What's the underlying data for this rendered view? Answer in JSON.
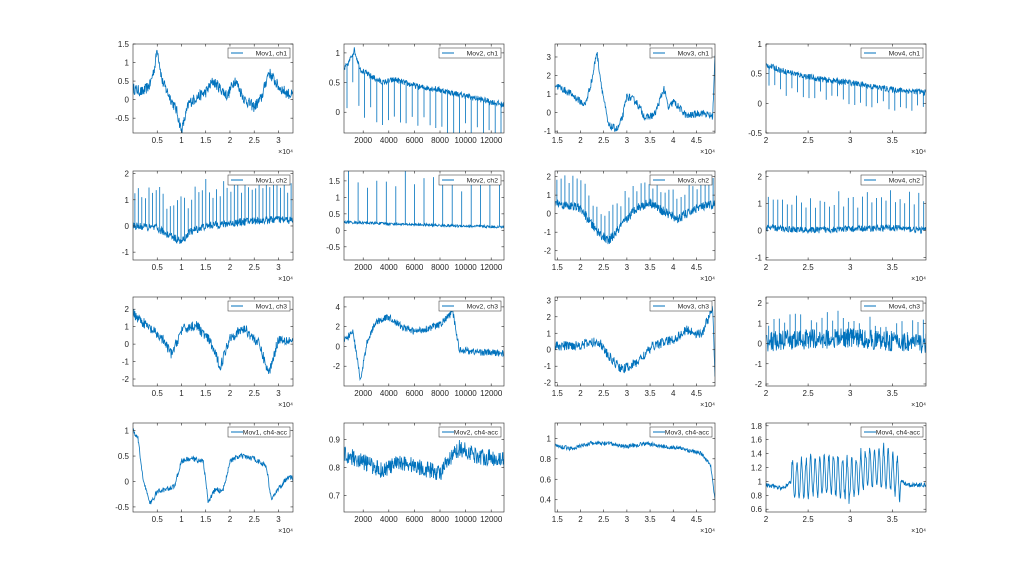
{
  "figure": {
    "rows": 4,
    "cols": 4,
    "line_color": "#0072BD",
    "axis_color": "#262626",
    "background": "#ffffff"
  },
  "chart_data": [
    {
      "type": "line",
      "legend": "Mov1, ch1",
      "legend_location": "top-right",
      "xlim": [
        0,
        3.3
      ],
      "ylim": [
        -0.9,
        1.5
      ],
      "xticks": [
        0.5,
        1,
        1.5,
        2,
        2.5,
        3
      ],
      "xtick_labels": [
        "0.5",
        "1",
        "1.5",
        "2",
        "2.5",
        "3"
      ],
      "yticks": [
        -0.5,
        0,
        0.5,
        1,
        1.5
      ],
      "ytick_labels": [
        "-0.5",
        "0",
        "0.5",
        "1",
        "1.5"
      ],
      "x_exponent": "×10⁴",
      "series": [
        {
          "x": [
            0,
            0.2,
            0.35,
            0.45,
            0.5,
            0.6,
            0.75,
            0.9,
            1.0,
            1.15,
            1.3,
            1.5,
            1.65,
            1.8,
            1.95,
            2.1,
            2.3,
            2.5,
            2.65,
            2.8,
            3.0,
            3.15,
            3.3
          ],
          "y": [
            0.3,
            0.2,
            0.4,
            0.9,
            1.4,
            0.5,
            0.1,
            -0.3,
            -0.85,
            -0.1,
            0.05,
            0.2,
            0.5,
            0.3,
            0.1,
            0.55,
            0.0,
            -0.2,
            0.05,
            0.75,
            0.35,
            0.2,
            0.1
          ],
          "noise": 0.15
        }
      ]
    },
    {
      "type": "line",
      "legend": "Mov2, ch1",
      "legend_location": "top-right",
      "xlim": [
        500,
        13000
      ],
      "ylim": [
        -0.35,
        1.15
      ],
      "xticks": [
        2000,
        4000,
        6000,
        8000,
        10000,
        12000
      ],
      "xtick_labels": [
        "2000",
        "4000",
        "6000",
        "8000",
        "10000",
        "12000"
      ],
      "yticks": [
        0,
        0.5,
        1
      ],
      "ytick_labels": [
        "0",
        "0.5",
        "1"
      ],
      "x_exponent": "",
      "series": [
        {
          "x": [
            500,
            900,
            1300,
            1800,
            2500,
            3500,
            4500,
            5500,
            6500,
            7500,
            8500,
            9500,
            10500,
            11500,
            12500,
            13000
          ],
          "y": [
            0.72,
            0.85,
            1.05,
            0.72,
            0.62,
            0.5,
            0.55,
            0.48,
            0.42,
            0.4,
            0.35,
            0.3,
            0.25,
            0.2,
            0.15,
            0.12
          ],
          "noise": 0.05,
          "spikes": {
            "count": 27,
            "depth": -0.6
          }
        }
      ]
    },
    {
      "type": "line",
      "legend": "Mov3, ch1",
      "legend_location": "top-right",
      "xlim": [
        1.45,
        4.9
      ],
      "ylim": [
        -1.1,
        3.7
      ],
      "xticks": [
        1.5,
        2,
        2.5,
        3,
        3.5,
        4,
        4.5
      ],
      "xtick_labels": [
        "1.5",
        "2",
        "2.5",
        "3",
        "3.5",
        "4",
        "4.5"
      ],
      "yticks": [
        -1,
        0,
        1,
        2,
        3
      ],
      "ytick_labels": [
        "-1",
        "0",
        "1",
        "2",
        "3"
      ],
      "x_exponent": "×10⁴",
      "series": [
        {
          "x": [
            1.45,
            1.8,
            2.1,
            2.25,
            2.35,
            2.45,
            2.6,
            2.8,
            2.9,
            3.0,
            3.2,
            3.4,
            3.6,
            3.8,
            3.9,
            4.0,
            4.3,
            4.6,
            4.85,
            4.9
          ],
          "y": [
            1.5,
            1.0,
            0.4,
            1.8,
            3.3,
            1.5,
            -0.7,
            -0.9,
            -0.3,
            0.9,
            0.6,
            -0.3,
            -0.1,
            1.3,
            0.2,
            0.6,
            -0.2,
            0.0,
            -0.2,
            3.0
          ],
          "noise": 0.2
        }
      ]
    },
    {
      "type": "line",
      "legend": "Mov4, ch1",
      "legend_location": "top-right",
      "xlim": [
        2.0,
        3.9
      ],
      "ylim": [
        -0.5,
        1.0
      ],
      "xticks": [
        2,
        2.5,
        3,
        3.5
      ],
      "xtick_labels": [
        "2",
        "2.5",
        "3",
        "3.5"
      ],
      "yticks": [
        -0.5,
        0,
        0.5,
        1
      ],
      "ytick_labels": [
        "-0.5",
        "0",
        "0.5",
        "1"
      ],
      "x_exponent": "×10⁴",
      "series": [
        {
          "x": [
            2.0,
            2.2,
            2.4,
            2.6,
            2.8,
            3.0,
            3.2,
            3.4,
            3.6,
            3.8,
            3.9
          ],
          "y": [
            0.65,
            0.55,
            0.48,
            0.42,
            0.38,
            0.35,
            0.3,
            0.25,
            0.22,
            0.2,
            0.18
          ],
          "noise": 0.05,
          "spikes": {
            "count": 28,
            "depth": -0.3
          }
        }
      ]
    },
    {
      "type": "line",
      "legend": "Mov1, ch2",
      "legend_location": "top-right",
      "xlim": [
        0,
        3.3
      ],
      "ylim": [
        -1.3,
        2.1
      ],
      "xticks": [
        0.5,
        1,
        1.5,
        2,
        2.5,
        3
      ],
      "xtick_labels": [
        "0.5",
        "1",
        "1.5",
        "2",
        "2.5",
        "3"
      ],
      "yticks": [
        -1,
        0,
        1,
        2
      ],
      "ytick_labels": [
        "-1",
        "0",
        "1",
        "2"
      ],
      "x_exponent": "×10⁴",
      "series": [
        {
          "x": [
            0,
            0.5,
            1.0,
            1.2,
            1.5,
            2.0,
            2.5,
            3.0,
            3.3
          ],
          "y": [
            0.0,
            -0.1,
            -0.6,
            -0.2,
            0.0,
            0.1,
            0.2,
            0.25,
            0.2
          ],
          "noise": 0.15,
          "spikes": {
            "count": 45,
            "depth": 1.4
          }
        }
      ]
    },
    {
      "type": "line",
      "legend": "Mov2, ch2",
      "legend_location": "top-right",
      "xlim": [
        500,
        13000
      ],
      "ylim": [
        -0.9,
        1.8
      ],
      "xticks": [
        2000,
        4000,
        6000,
        8000,
        10000,
        12000
      ],
      "xtick_labels": [
        "2000",
        "4000",
        "6000",
        "8000",
        "10000",
        "12000"
      ],
      "yticks": [
        -0.5,
        0,
        0.5,
        1,
        1.5
      ],
      "ytick_labels": [
        "-0.5",
        "0",
        "0.5",
        "1",
        "1.5"
      ],
      "x_exponent": "",
      "series": [
        {
          "x": [
            500,
            4000,
            8000,
            13000
          ],
          "y": [
            0.25,
            0.2,
            0.15,
            0.1
          ],
          "noise": 0.04,
          "spikes": {
            "count": 17,
            "depth": 1.35
          }
        }
      ]
    },
    {
      "type": "line",
      "legend": "Mov3, ch2",
      "legend_location": "top-right",
      "xlim": [
        1.45,
        4.9
      ],
      "ylim": [
        -2.5,
        2.3
      ],
      "xticks": [
        1.5,
        2,
        2.5,
        3,
        3.5,
        4,
        4.5
      ],
      "xtick_labels": [
        "1.5",
        "2",
        "2.5",
        "3",
        "3.5",
        "4",
        "4.5"
      ],
      "yticks": [
        -2,
        -1,
        0,
        1,
        2
      ],
      "ytick_labels": [
        "-2",
        "-1",
        "0",
        "1",
        "2"
      ],
      "x_exponent": "×10⁴",
      "series": [
        {
          "x": [
            1.45,
            2.0,
            2.3,
            2.6,
            2.9,
            3.2,
            3.5,
            3.8,
            4.1,
            4.5,
            4.9
          ],
          "y": [
            0.6,
            0.3,
            -0.8,
            -1.5,
            -0.6,
            0.3,
            0.6,
            0.1,
            -0.3,
            0.3,
            0.5
          ],
          "noise": 0.25,
          "spikes": {
            "count": 40,
            "depth": 1.2
          }
        }
      ]
    },
    {
      "type": "line",
      "legend": "Mov4, ch2",
      "legend_location": "top-right",
      "xlim": [
        2.0,
        3.9
      ],
      "ylim": [
        -1.1,
        2.2
      ],
      "xticks": [
        2,
        2.5,
        3,
        3.5
      ],
      "xtick_labels": [
        "2",
        "2.5",
        "3",
        "3.5"
      ],
      "yticks": [
        -1,
        0,
        1,
        2
      ],
      "ytick_labels": [
        "-1",
        "0",
        "1",
        "2"
      ],
      "x_exponent": "×10⁴",
      "series": [
        {
          "x": [
            2.0,
            2.5,
            3.0,
            3.5,
            3.9
          ],
          "y": [
            0.1,
            0.0,
            0.05,
            0.1,
            0.0
          ],
          "noise": 0.12,
          "spikes": {
            "count": 34,
            "depth": 1.1
          }
        }
      ]
    },
    {
      "type": "line",
      "legend": "Mov1, ch3",
      "legend_location": "top-right",
      "xlim": [
        0,
        3.3
      ],
      "ylim": [
        -2.4,
        2.7
      ],
      "xticks": [
        0.5,
        1,
        1.5,
        2,
        2.5,
        3
      ],
      "xtick_labels": [
        "0.5",
        "1",
        "1.5",
        "2",
        "2.5",
        "3"
      ],
      "yticks": [
        -2,
        -1,
        0,
        1,
        2
      ],
      "ytick_labels": [
        "-2",
        "-1",
        "0",
        "1",
        "2"
      ],
      "x_exponent": "×10⁴",
      "series": [
        {
          "x": [
            0,
            0.3,
            0.6,
            0.8,
            1.0,
            1.3,
            1.6,
            1.8,
            2.0,
            2.3,
            2.6,
            2.8,
            3.0,
            3.3
          ],
          "y": [
            1.8,
            1.0,
            0.3,
            -0.6,
            0.8,
            1.1,
            0.1,
            -1.3,
            0.4,
            0.9,
            0.0,
            -1.7,
            0.3,
            0.2
          ],
          "noise": 0.3
        }
      ]
    },
    {
      "type": "line",
      "legend": "Mov2, ch3",
      "legend_location": "top-right",
      "xlim": [
        500,
        13000
      ],
      "ylim": [
        -4.0,
        5.0
      ],
      "xticks": [
        2000,
        4000,
        6000,
        8000,
        10000,
        12000
      ],
      "xtick_labels": [
        "2000",
        "4000",
        "6000",
        "8000",
        "10000",
        "12000"
      ],
      "yticks": [
        -2,
        0,
        2,
        4
      ],
      "ytick_labels": [
        "-2",
        "0",
        "2",
        "4"
      ],
      "x_exponent": "",
      "series": [
        {
          "x": [
            500,
            1200,
            1800,
            2300,
            3000,
            4000,
            5000,
            6000,
            7000,
            8000,
            9000,
            9500,
            10500,
            11500,
            13000
          ],
          "y": [
            0.5,
            1.5,
            -3.5,
            0.5,
            2.5,
            3.0,
            2.0,
            1.5,
            1.8,
            2.2,
            3.5,
            -0.3,
            -0.5,
            -0.6,
            -0.7
          ],
          "noise": 0.35
        }
      ]
    },
    {
      "type": "line",
      "legend": "Mov3, ch3",
      "legend_location": "top-right",
      "xlim": [
        1.45,
        4.9
      ],
      "ylim": [
        -2.2,
        3.2
      ],
      "xticks": [
        1.5,
        2,
        2.5,
        3,
        3.5,
        4,
        4.5
      ],
      "xtick_labels": [
        "1.5",
        "2",
        "2.5",
        "3",
        "3.5",
        "4",
        "4.5"
      ],
      "yticks": [
        -2,
        -1,
        0,
        1,
        2,
        3
      ],
      "ytick_labels": [
        "-2",
        "-1",
        "0",
        "1",
        "2",
        "3"
      ],
      "x_exponent": "×10⁴",
      "series": [
        {
          "x": [
            1.45,
            2.0,
            2.4,
            2.6,
            2.9,
            3.2,
            3.6,
            4.0,
            4.3,
            4.6,
            4.85,
            4.9
          ],
          "y": [
            0.2,
            0.3,
            0.5,
            -0.4,
            -1.2,
            -0.8,
            0.3,
            0.6,
            1.2,
            0.9,
            2.5,
            -1.8
          ],
          "noise": 0.3
        }
      ]
    },
    {
      "type": "line",
      "legend": "Mov4, ch3",
      "legend_location": "top-right",
      "xlim": [
        2.0,
        3.9
      ],
      "ylim": [
        -2.1,
        2.3
      ],
      "xticks": [
        2,
        2.5,
        3,
        3.5
      ],
      "xtick_labels": [
        "2",
        "2.5",
        "3",
        "3.5"
      ],
      "yticks": [
        -2,
        -1,
        0,
        1,
        2
      ],
      "ytick_labels": [
        "-2",
        "-1",
        "0",
        "1",
        "2"
      ],
      "x_exponent": "×10⁴",
      "series": [
        {
          "x": [
            2.0,
            2.5,
            3.0,
            3.5,
            3.9
          ],
          "y": [
            0.1,
            0.2,
            0.3,
            0.1,
            0.0
          ],
          "noise": 0.5,
          "spikes": {
            "count": 30,
            "depth": 0.9
          }
        }
      ]
    },
    {
      "type": "line",
      "legend": "Mov1, ch4-acc",
      "legend_location": "top-right",
      "xlim": [
        0,
        3.3
      ],
      "ylim": [
        -0.6,
        1.15
      ],
      "xticks": [
        0.5,
        1,
        1.5,
        2,
        2.5,
        3
      ],
      "xtick_labels": [
        "0.5",
        "1",
        "1.5",
        "2",
        "2.5",
        "3"
      ],
      "yticks": [
        -0.5,
        0,
        0.5,
        1
      ],
      "ytick_labels": [
        "-0.5",
        "0",
        "0.5",
        "1"
      ],
      "x_exponent": "×10⁴",
      "series": [
        {
          "x": [
            0,
            0.1,
            0.2,
            0.35,
            0.5,
            0.7,
            0.85,
            1.0,
            1.2,
            1.45,
            1.55,
            1.7,
            1.85,
            2.0,
            2.2,
            2.5,
            2.75,
            2.85,
            3.0,
            3.2,
            3.3
          ],
          "y": [
            1.0,
            0.85,
            0.1,
            -0.45,
            -0.2,
            -0.15,
            -0.1,
            0.4,
            0.45,
            0.4,
            -0.4,
            -0.15,
            -0.2,
            0.4,
            0.5,
            0.45,
            0.3,
            -0.35,
            -0.15,
            0.1,
            0.05
          ],
          "noise": 0.05
        }
      ]
    },
    {
      "type": "line",
      "legend": "Mov2, ch4-acc",
      "legend_location": "top-right",
      "xlim": [
        500,
        13000
      ],
      "ylim": [
        0.64,
        0.96
      ],
      "xticks": [
        2000,
        4000,
        6000,
        8000,
        10000,
        12000
      ],
      "xtick_labels": [
        "2000",
        "4000",
        "6000",
        "8000",
        "10000",
        "12000"
      ],
      "yticks": [
        0.7,
        0.8,
        0.9
      ],
      "ytick_labels": [
        "0.7",
        "0.8",
        "0.9"
      ],
      "x_exponent": "",
      "series": [
        {
          "x": [
            500,
            2000,
            3500,
            5000,
            6500,
            8000,
            9000,
            9500,
            11000,
            13000
          ],
          "y": [
            0.85,
            0.82,
            0.79,
            0.82,
            0.8,
            0.78,
            0.84,
            0.87,
            0.84,
            0.83
          ],
          "noise": 0.03
        }
      ]
    },
    {
      "type": "line",
      "legend": "Mov3, ch4-acc",
      "legend_location": "top-right",
      "xlim": [
        1.45,
        4.9
      ],
      "ylim": [
        0.28,
        1.15
      ],
      "xticks": [
        1.5,
        2,
        2.5,
        3,
        3.5,
        4,
        4.5
      ],
      "xtick_labels": [
        "1.5",
        "2",
        "2.5",
        "3",
        "3.5",
        "4",
        "4.5"
      ],
      "yticks": [
        0.4,
        0.6,
        0.8,
        1
      ],
      "ytick_labels": [
        "0.4",
        "0.6",
        "0.8",
        "1"
      ],
      "x_exponent": "×10⁴",
      "series": [
        {
          "x": [
            1.45,
            1.8,
            2.2,
            2.6,
            3.0,
            3.4,
            3.8,
            4.2,
            4.6,
            4.8,
            4.9
          ],
          "y": [
            0.93,
            0.9,
            0.95,
            0.95,
            0.92,
            0.95,
            0.92,
            0.9,
            0.85,
            0.75,
            0.4
          ],
          "noise": 0.02
        }
      ]
    },
    {
      "type": "line",
      "legend": "Mov4, ch4-acc",
      "legend_location": "top-right",
      "xlim": [
        2.0,
        3.9
      ],
      "ylim": [
        0.56,
        1.84
      ],
      "xticks": [
        2,
        2.5,
        3,
        3.5
      ],
      "xtick_labels": [
        "2",
        "2.5",
        "3",
        "3.5"
      ],
      "yticks": [
        0.6,
        0.8,
        1,
        1.2,
        1.4,
        1.6,
        1.8
      ],
      "ytick_labels": [
        "0.6",
        "0.8",
        "1",
        "1.2",
        "1.4",
        "1.6",
        "1.8"
      ],
      "x_exponent": "×10⁴",
      "series": [
        {
          "x": [
            2.0,
            2.2,
            2.3,
            2.5,
            2.8,
            3.0,
            3.2,
            3.4,
            3.6,
            3.7,
            3.9
          ],
          "y": [
            0.95,
            0.9,
            1.0,
            1.05,
            1.1,
            1.0,
            1.2,
            1.2,
            1.0,
            0.95,
            0.95
          ],
          "noise": 0.03,
          "oscillation": {
            "from": 2.3,
            "to": 3.6,
            "amplitude": 0.35,
            "cycles": 24
          }
        }
      ]
    }
  ]
}
